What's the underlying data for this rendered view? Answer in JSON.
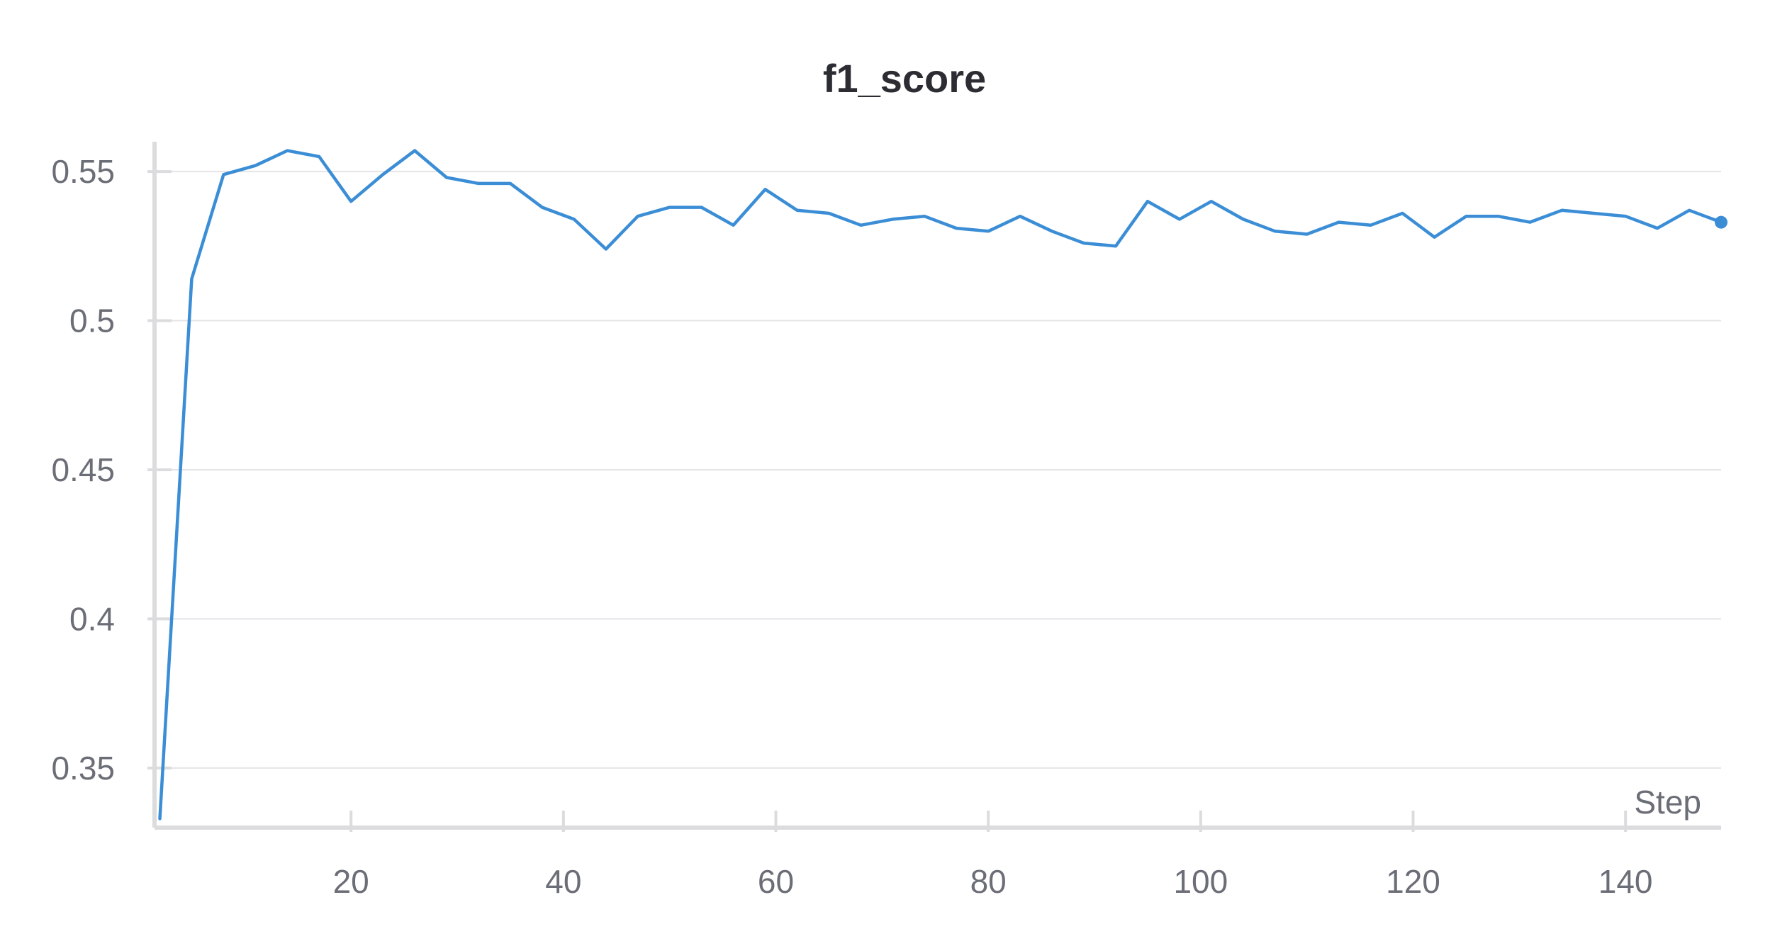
{
  "chart_data": {
    "type": "line",
    "title": "f1_score",
    "xlabel": "Step",
    "ylabel": "",
    "xlim": [
      1.5,
      149
    ],
    "ylim": [
      0.33,
      0.56
    ],
    "grid": true,
    "x_ticks": [
      20,
      40,
      60,
      80,
      100,
      120,
      140
    ],
    "y_ticks": [
      0.35,
      0.4,
      0.45,
      0.5,
      0.55
    ],
    "y_tick_labels": [
      "0.35",
      "0.4",
      "0.45",
      "0.5",
      "0.55"
    ],
    "series": [
      {
        "color": "#3b8ed6",
        "end_marker": true,
        "x": [
          2,
          5,
          8,
          11,
          14,
          17,
          20,
          23,
          26,
          29,
          32,
          35,
          38,
          41,
          44,
          47,
          50,
          53,
          56,
          59,
          62,
          65,
          68,
          71,
          74,
          77,
          80,
          83,
          86,
          89,
          92,
          95,
          98,
          101,
          104,
          107,
          110,
          113,
          116,
          119,
          122,
          125,
          128,
          131,
          134,
          137,
          140,
          143,
          146,
          149
        ],
        "y": [
          0.333,
          0.514,
          0.549,
          0.552,
          0.557,
          0.555,
          0.54,
          0.549,
          0.557,
          0.548,
          0.546,
          0.546,
          0.538,
          0.534,
          0.524,
          0.535,
          0.538,
          0.538,
          0.532,
          0.544,
          0.537,
          0.536,
          0.532,
          0.534,
          0.535,
          0.531,
          0.53,
          0.535,
          0.53,
          0.526,
          0.525,
          0.54,
          0.534,
          0.54,
          0.534,
          0.53,
          0.529,
          0.533,
          0.532,
          0.536,
          0.528,
          0.535,
          0.535,
          0.533,
          0.537,
          0.536,
          0.535,
          0.531,
          0.537,
          0.533
        ]
      }
    ]
  }
}
